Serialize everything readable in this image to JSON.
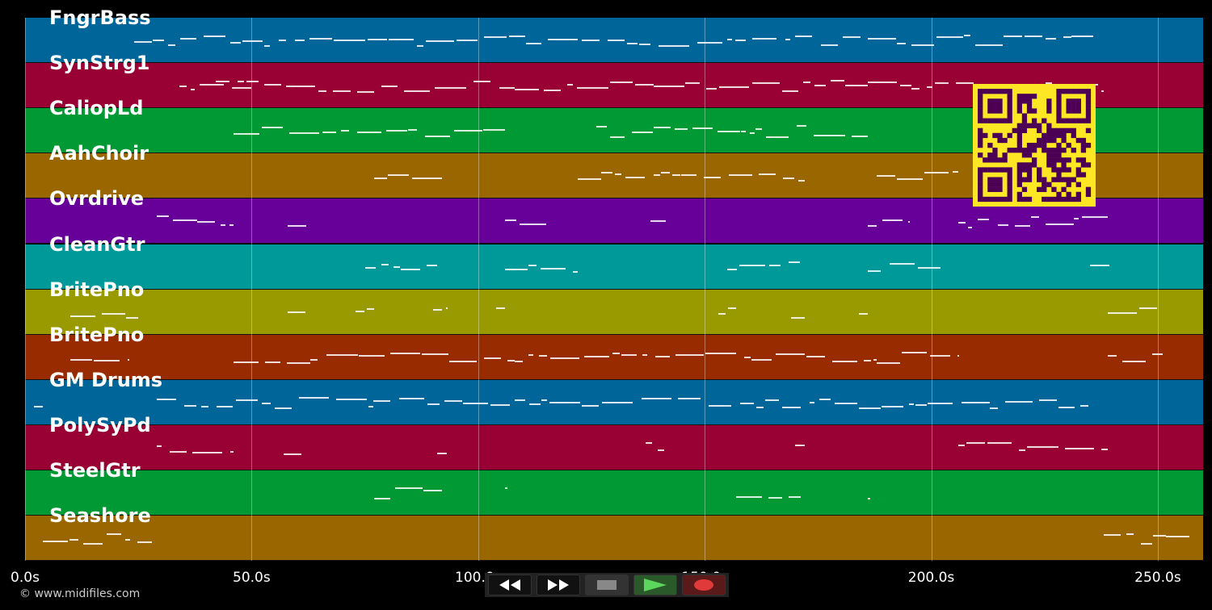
{
  "tracks": [
    {
      "label": "FngrBass",
      "color": "#006699"
    },
    {
      "label": "SynStrg1",
      "color": "#990033"
    },
    {
      "label": "CaliopLd",
      "color": "#009933"
    },
    {
      "label": "AahChoir",
      "color": "#996600"
    },
    {
      "label": "Ovrdrive",
      "color": "#660099"
    },
    {
      "label": "CleanGtr",
      "color": "#009999"
    },
    {
      "label": "BritePno",
      "color": "#999900"
    },
    {
      "label": "BritePno",
      "color": "#992b00"
    },
    {
      "label": "GM Drums",
      "color": "#006699"
    },
    {
      "label": "PolySyPd",
      "color": "#990033"
    },
    {
      "label": "SteelGtr",
      "color": "#009933"
    },
    {
      "label": "Seashore",
      "color": "#996600"
    }
  ],
  "time_axis": {
    "ticks": [
      "0.0s",
      "50.0s",
      "100.0s",
      "150.0s",
      "200.0s",
      "250.0s"
    ],
    "tick_values": [
      0,
      50,
      100,
      150,
      200,
      250
    ],
    "range_seconds": [
      0,
      260
    ]
  },
  "copyright": "© www.midifiles.com",
  "qr_code": {
    "foreground": "#4b0055",
    "background": "#fde725"
  },
  "transport": {
    "rewind_icon": "rewind-icon",
    "fast_forward_icon": "fast-forward-icon",
    "stop_icon": "stop-icon",
    "play_icon": "play-icon",
    "record_icon": "record-icon"
  }
}
